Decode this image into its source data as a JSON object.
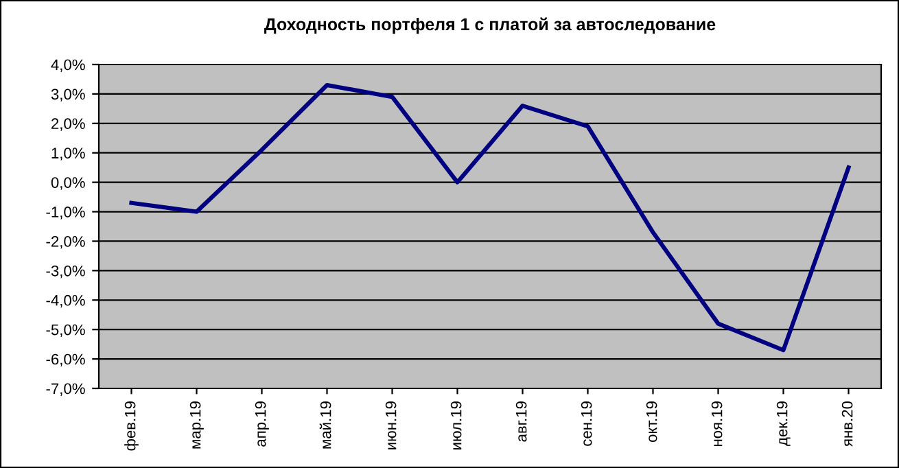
{
  "chart_data": {
    "type": "line",
    "title": "Доходность портфеля 1 с платой за автоследование",
    "categories": [
      "фев.19",
      "мар.19",
      "апр.19",
      "май.19",
      "июн.19",
      "июл.19",
      "авг.19",
      "сен.19",
      "окт.19",
      "ноя.19",
      "дек.19",
      "янв.20"
    ],
    "series": [
      {
        "color": "#000080",
        "values": [
          -0.7,
          -1.0,
          1.1,
          3.3,
          2.9,
          0.0,
          2.6,
          1.9,
          -1.7,
          -4.8,
          -5.7,
          0.5
        ]
      }
    ],
    "ylim": [
      -7,
      4
    ],
    "yticks": [
      {
        "value": -7,
        "label": "-7,0%"
      },
      {
        "value": -6,
        "label": "-6,0%"
      },
      {
        "value": -5,
        "label": "-5,0%"
      },
      {
        "value": -4,
        "label": "-4,0%"
      },
      {
        "value": -3,
        "label": "-3,0%"
      },
      {
        "value": -2,
        "label": "-2,0%"
      },
      {
        "value": -1,
        "label": "-1,0%"
      },
      {
        "value": 0,
        "label": "0,0%"
      },
      {
        "value": 1,
        "label": "1,0%"
      },
      {
        "value": 2,
        "label": "2,0%"
      },
      {
        "value": 3,
        "label": "3,0%"
      },
      {
        "value": 4,
        "label": "4,0%"
      }
    ],
    "grid": "y",
    "marker": "none",
    "line_style": "solid",
    "legend": false
  }
}
